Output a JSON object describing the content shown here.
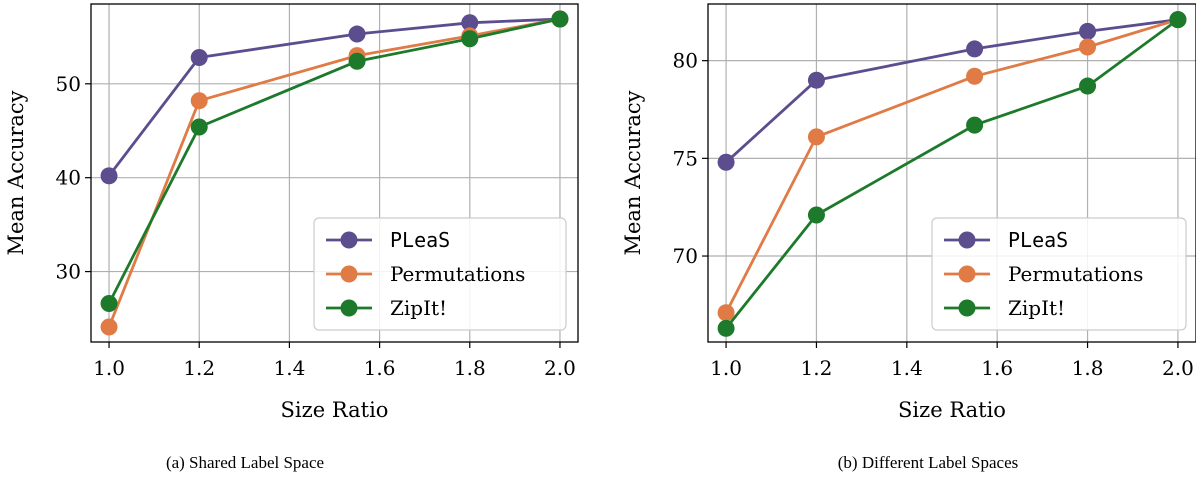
{
  "colors": {
    "series": [
      "#5c4d8f",
      "#e07b45",
      "#1c7a2a"
    ],
    "grid": "#b0b0b0",
    "axis": "#000000"
  },
  "chart_data": [
    {
      "type": "line",
      "caption": "(a) Shared Label Space",
      "xlabel": "Size Ratio",
      "ylabel": "Mean Accuracy",
      "x": [
        1.0,
        1.2,
        1.55,
        1.8,
        2.0
      ],
      "xlim": [
        0.96,
        2.04
      ],
      "ylim": [
        22.5,
        58.5
      ],
      "xticks": [
        1.0,
        1.2,
        1.4,
        1.6,
        1.8,
        2.0
      ],
      "xtick_labels": [
        "1.0",
        "1.2",
        "1.4",
        "1.6",
        "1.8",
        "2.0"
      ],
      "yticks": [
        30,
        40,
        50
      ],
      "ytick_labels": [
        "30",
        "40",
        "50"
      ],
      "grid": true,
      "legend_position": "lower-right",
      "series": [
        {
          "name": "PLeaS",
          "values": [
            40.2,
            52.8,
            55.3,
            56.5,
            56.9
          ]
        },
        {
          "name": "Permutations",
          "values": [
            24.1,
            48.2,
            53.0,
            55.1,
            56.9
          ]
        },
        {
          "name": "ZipIt!",
          "values": [
            26.6,
            45.4,
            52.4,
            54.8,
            56.9
          ]
        }
      ]
    },
    {
      "type": "line",
      "caption": "(b) Different Label Spaces",
      "xlabel": "Size Ratio",
      "ylabel": "Mean Accuracy",
      "x": [
        1.0,
        1.2,
        1.55,
        1.8,
        2.0
      ],
      "xlim": [
        0.96,
        2.04
      ],
      "ylim": [
        65.6,
        82.9
      ],
      "xticks": [
        1.0,
        1.2,
        1.4,
        1.6,
        1.8,
        2.0
      ],
      "xtick_labels": [
        "1.0",
        "1.2",
        "1.4",
        "1.6",
        "1.8",
        "2.0"
      ],
      "yticks": [
        70,
        75,
        80
      ],
      "ytick_labels": [
        "70",
        "75",
        "80"
      ],
      "grid": true,
      "legend_position": "lower-right",
      "series": [
        {
          "name": "PLeaS",
          "values": [
            74.8,
            79.0,
            80.6,
            81.5,
            82.1
          ]
        },
        {
          "name": "Permutations",
          "values": [
            67.1,
            76.1,
            79.2,
            80.7,
            82.1
          ]
        },
        {
          "name": "ZipIt!",
          "values": [
            66.3,
            72.1,
            76.7,
            78.7,
            82.1
          ]
        }
      ]
    }
  ]
}
